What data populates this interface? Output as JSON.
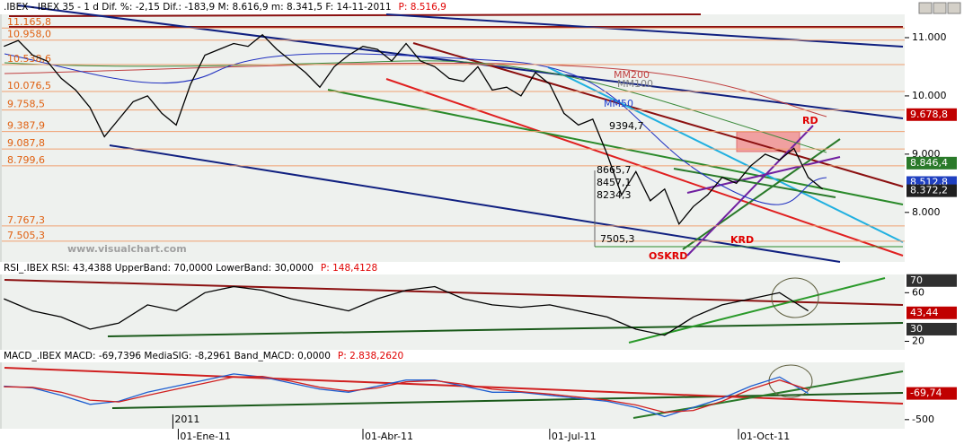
{
  "chart_data": [
    {
      "type": "line",
      "header": ".IBEX - IBEX 35 - 1 d Dif. %: -2,15 Dif.: -183,9 M: 8.616,9 m: 8.341,5 F: 14-11-2011",
      "header_value": "P: 8.516,9",
      "x": [
        "2010-10-08",
        "2010-10-15",
        "2010-10-22",
        "2010-10-29",
        "2010-11-05",
        "2010-11-12",
        "2010-11-19",
        "2010-11-26",
        "2010-12-03",
        "2010-12-10",
        "2010-12-17",
        "2010-12-24",
        "2010-12-31",
        "2011-01-07",
        "2011-01-14",
        "2011-01-21",
        "2011-01-28",
        "2011-02-04",
        "2011-02-11",
        "2011-02-18",
        "2011-02-25",
        "2011-03-04",
        "2011-03-11",
        "2011-03-18",
        "2011-03-25",
        "2011-04-01",
        "2011-04-08",
        "2011-04-15",
        "2011-04-22",
        "2011-04-29",
        "2011-05-06",
        "2011-05-13",
        "2011-05-20",
        "2011-05-27",
        "2011-06-03",
        "2011-06-10",
        "2011-06-17",
        "2011-06-24",
        "2011-07-01",
        "2011-07-08",
        "2011-07-15",
        "2011-07-22",
        "2011-07-29",
        "2011-08-05",
        "2011-08-12",
        "2011-08-19",
        "2011-08-26",
        "2011-09-02",
        "2011-09-09",
        "2011-09-16",
        "2011-09-23",
        "2011-09-30",
        "2011-10-07",
        "2011-10-14",
        "2011-10-21",
        "2011-10-28",
        "2011-11-04",
        "2011-11-11"
      ],
      "series": [
        {
          "color": "#000000",
          "values": [
            10850,
            10950,
            10700,
            10600,
            10300,
            10100,
            9800,
            9300,
            9600,
            9900,
            10000,
            9700,
            9500,
            10200,
            10700,
            10800,
            10900,
            10850,
            11050,
            10800,
            10600,
            10400,
            10150,
            10500,
            10700,
            10850,
            10800,
            10600,
            10900,
            10600,
            10500,
            10300,
            10250,
            10500,
            10100,
            10150,
            10000,
            10400,
            10200,
            9700,
            9500,
            9600,
            9000,
            8300,
            8700,
            8200,
            8400,
            7800,
            8100,
            8300,
            8600,
            8500,
            8800,
            9000,
            8900,
            9100,
            8600,
            8400
          ]
        }
      ],
      "xlim": [
        "2010-10-07",
        "2011-12-21"
      ],
      "ylim": [
        7150,
        11400
      ],
      "yticks": [
        {
          "value": 8000,
          "label": "8.000"
        },
        {
          "value": 9000,
          "label": "9.000"
        },
        {
          "value": 10000,
          "label": "10.000"
        },
        {
          "value": 11000,
          "label": "11.000"
        }
      ],
      "levels": [
        {
          "value": 11165.8,
          "label": "11.165,8"
        },
        {
          "value": 10958.0,
          "label": "10.958,0"
        },
        {
          "value": 10538.6,
          "label": "10.538,6"
        },
        {
          "value": 10076.5,
          "label": "10.076,5"
        },
        {
          "value": 9758.5,
          "label": "9.758,5"
        },
        {
          "value": 9387.9,
          "label": "9.387,9"
        },
        {
          "value": 9087.8,
          "label": "9.087,8"
        },
        {
          "value": 8799.6,
          "label": "8.799,6"
        },
        {
          "value": 7767.3,
          "label": "7.767,3"
        },
        {
          "value": 7505.3,
          "label": "7.505,3"
        }
      ],
      "value_boxes": [
        {
          "value": 9678.8,
          "label": "9.678,8",
          "color": "#c00000"
        },
        {
          "value": 8846.4,
          "label": "8.846,4",
          "color": "#2a7a2a"
        },
        {
          "value": 8512.8,
          "label": "8.512,8",
          "color": "#2040c0"
        },
        {
          "value": 8372.2,
          "label": "8.372,2",
          "color": "#202020"
        }
      ],
      "annotations": [
        "9394,7",
        "8665,7",
        "8457,1",
        "8234,3",
        "7505,3",
        "RD",
        "KRD",
        "OSKRD",
        "MM200",
        "MM100",
        "MM50",
        "www.visualchart.com"
      ]
    },
    {
      "type": "line",
      "header": "RSI_.IBEX RSI: 43,4388 UpperBand: 70,0000 LowerBand: 30,0000",
      "header_value": "P: 148,4128",
      "x": [
        "2010-10-08",
        "2010-10-22",
        "2010-11-05",
        "2010-11-19",
        "2010-12-03",
        "2010-12-17",
        "2010-12-31",
        "2011-01-14",
        "2011-01-28",
        "2011-02-11",
        "2011-02-25",
        "2011-03-11",
        "2011-03-25",
        "2011-04-08",
        "2011-04-22",
        "2011-05-06",
        "2011-05-20",
        "2011-06-03",
        "2011-06-17",
        "2011-07-01",
        "2011-07-15",
        "2011-07-29",
        "2011-08-12",
        "2011-08-26",
        "2011-09-09",
        "2011-09-23",
        "2011-10-07",
        "2011-10-21",
        "2011-11-04"
      ],
      "series": [
        {
          "color": "#000000",
          "values": [
            55,
            45,
            40,
            30,
            35,
            50,
            45,
            60,
            65,
            62,
            55,
            50,
            45,
            55,
            62,
            65,
            55,
            50,
            48,
            50,
            45,
            40,
            30,
            25,
            40,
            50,
            55,
            60,
            45
          ]
        }
      ],
      "xlim": [
        "2010-10-07",
        "2011-12-21"
      ],
      "ylim": [
        13,
        75
      ],
      "yticks": [
        20,
        60
      ],
      "value_boxes": [
        {
          "value": 70,
          "label": "70",
          "color": "#303030"
        },
        {
          "value": 43.44,
          "label": "43,44",
          "color": "#c00000"
        },
        {
          "value": 30,
          "label": "30",
          "color": "#303030"
        }
      ]
    },
    {
      "type": "line",
      "header": "MACD_.IBEX MACD: -69,7396 MediaSIG: -8,2961 Band_MACD: 0,0000",
      "header_value": "P: 2.838,2620",
      "x": [
        "2010-10-08",
        "2010-10-22",
        "2010-11-05",
        "2010-11-19",
        "2010-12-03",
        "2010-12-17",
        "2010-12-31",
        "2011-01-14",
        "2011-01-28",
        "2011-02-11",
        "2011-02-25",
        "2011-03-11",
        "2011-03-25",
        "2011-04-08",
        "2011-04-22",
        "2011-05-06",
        "2011-05-20",
        "2011-06-03",
        "2011-06-17",
        "2011-07-01",
        "2011-07-15",
        "2011-07-29",
        "2011-08-12",
        "2011-08-26",
        "2011-09-09",
        "2011-09-23",
        "2011-10-07",
        "2011-10-21",
        "2011-11-04"
      ],
      "series": [
        {
          "color": "#1f5fd0",
          "values": [
            50,
            20,
            -100,
            -250,
            -200,
            -50,
            50,
            150,
            250,
            200,
            100,
            0,
            -50,
            50,
            150,
            150,
            50,
            -50,
            -50,
            -100,
            -150,
            -200,
            -300,
            -450,
            -300,
            -150,
            50,
            200,
            -70
          ]
        },
        {
          "color": "#d02020",
          "values": [
            40,
            30,
            -50,
            -180,
            -210,
            -100,
            0,
            100,
            200,
            210,
            130,
            30,
            -30,
            20,
            120,
            140,
            80,
            0,
            -40,
            -80,
            -130,
            -180,
            -260,
            -380,
            -350,
            -200,
            0,
            150,
            -8
          ]
        }
      ],
      "xlim": [
        "2010-10-07",
        "2011-12-21"
      ],
      "ylim": [
        -650,
        440
      ],
      "yticks": [
        -500
      ],
      "value_boxes": [
        {
          "value": -69.74,
          "label": "-69,74",
          "color": "#c00000"
        }
      ],
      "xticks": [
        {
          "value": "2011-01-01",
          "label": "01-Ene-11"
        },
        {
          "value": "2011-04-01",
          "label": "01-Abr-11"
        },
        {
          "value": "2011-07-01",
          "label": "01-Jul-11"
        },
        {
          "value": "2011-10-01",
          "label": "01-Oct-11"
        }
      ],
      "year_marker": {
        "value": "2011-01-01",
        "label": "2011"
      }
    }
  ]
}
